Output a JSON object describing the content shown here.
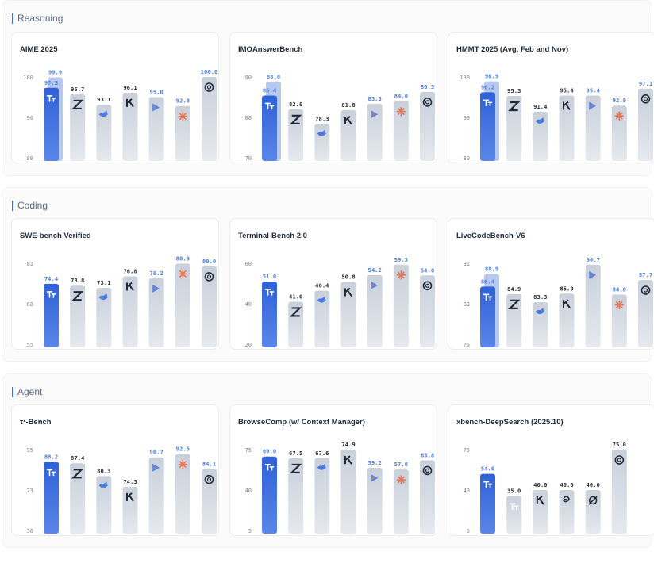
{
  "sections": [
    {
      "title": "Reasoning",
      "charts": [
        {
          "title": "AIME 2025",
          "chart_data": {
            "type": "bar",
            "yticks": [
              "100",
              "90",
              "80"
            ],
            "ylim": [
              80,
              100
            ],
            "bars": [
              {
                "model": "hyperstar",
                "value": 97.3,
                "label": "97.3",
                "highlight": true,
                "ghost": 99.9,
                "ghost_label": "99.9"
              },
              {
                "model": "z",
                "value": 95.7,
                "label": "95.7"
              },
              {
                "model": "whale",
                "value": 93.1,
                "label": "93.1"
              },
              {
                "model": "k",
                "value": 96.1,
                "label": "96.1"
              },
              {
                "model": "gem",
                "value": 95.0,
                "label": "95.0",
                "accent": true
              },
              {
                "model": "claude",
                "value": 92.8,
                "label": "92.8",
                "accent": true
              },
              {
                "model": "openai",
                "value": 100.0,
                "label": "100.0",
                "accent": true
              }
            ]
          }
        },
        {
          "title": "IMOAnswerBench",
          "chart_data": {
            "type": "bar",
            "yticks": [
              "90",
              "80",
              "70"
            ],
            "ylim": [
              70,
              90
            ],
            "bars": [
              {
                "model": "hyperstar",
                "value": 85.4,
                "label": "85.4",
                "highlight": true,
                "ghost": 88.8,
                "ghost_label": "88.8"
              },
              {
                "model": "z",
                "value": 82.0,
                "label": "82.0"
              },
              {
                "model": "whale",
                "value": 78.3,
                "label": "78.3"
              },
              {
                "model": "k",
                "value": 81.8,
                "label": "81.8"
              },
              {
                "model": "gem",
                "value": 83.3,
                "label": "83.3",
                "accent": true
              },
              {
                "model": "claude",
                "value": 84.0,
                "label": "84.0",
                "accent": true
              },
              {
                "model": "openai",
                "value": 86.3,
                "label": "86.3",
                "accent": true
              }
            ]
          }
        },
        {
          "title": "HMMT 2025 (Avg. Feb and Nov)",
          "chart_data": {
            "type": "bar",
            "yticks": [
              "100",
              "90",
              "80"
            ],
            "ylim": [
              80,
              100
            ],
            "bars": [
              {
                "model": "hyperstar",
                "value": 96.2,
                "label": "96.2",
                "highlight": true,
                "ghost": 98.9,
                "ghost_label": "98.9"
              },
              {
                "model": "z",
                "value": 95.3,
                "label": "95.3"
              },
              {
                "model": "whale",
                "value": 91.4,
                "label": "91.4"
              },
              {
                "model": "k",
                "value": 95.4,
                "label": "95.4"
              },
              {
                "model": "gem",
                "value": 95.4,
                "label": "95.4",
                "accent": true
              },
              {
                "model": "claude",
                "value": 92.9,
                "label": "92.9",
                "accent": true
              },
              {
                "model": "openai",
                "value": 97.1,
                "label": "97.1",
                "accent": true
              }
            ]
          }
        }
      ]
    },
    {
      "title": "Coding",
      "charts": [
        {
          "title": "SWE-bench Verified",
          "chart_data": {
            "type": "bar",
            "yticks": [
              "81",
              "68",
              "55"
            ],
            "ylim": [
              55,
              81
            ],
            "bars": [
              {
                "model": "hyperstar",
                "value": 74.4,
                "label": "74.4",
                "highlight": true
              },
              {
                "model": "z",
                "value": 73.8,
                "label": "73.8"
              },
              {
                "model": "whale",
                "value": 73.1,
                "label": "73.1"
              },
              {
                "model": "k",
                "value": 76.8,
                "label": "76.8"
              },
              {
                "model": "gem",
                "value": 76.2,
                "label": "76.2",
                "accent": true
              },
              {
                "model": "claude",
                "value": 80.9,
                "label": "80.9",
                "accent": true
              },
              {
                "model": "openai",
                "value": 80.0,
                "label": "80.0",
                "accent": true
              }
            ]
          }
        },
        {
          "title": "Terminal-Bench 2.0",
          "chart_data": {
            "type": "bar",
            "yticks": [
              "60",
              "40",
              "20"
            ],
            "ylim": [
              20,
              60
            ],
            "bars": [
              {
                "model": "hyperstar",
                "value": 51.0,
                "label": "51.0",
                "highlight": true
              },
              {
                "model": "z",
                "value": 41.0,
                "label": "41.0"
              },
              {
                "model": "whale",
                "value": 46.4,
                "label": "46.4"
              },
              {
                "model": "k",
                "value": 50.8,
                "label": "50.8"
              },
              {
                "model": "gem",
                "value": 54.2,
                "label": "54.2",
                "accent": true
              },
              {
                "model": "claude",
                "value": 59.3,
                "label": "59.3",
                "accent": true
              },
              {
                "model": "openai",
                "value": 54.0,
                "label": "54.0",
                "accent": true
              }
            ]
          }
        },
        {
          "title": "LiveCodeBench-V6",
          "chart_data": {
            "type": "bar",
            "yticks": [
              "91",
              "83",
              "75"
            ],
            "ylim": [
              75,
              91
            ],
            "bars": [
              {
                "model": "hyperstar",
                "value": 86.4,
                "label": "86.4",
                "highlight": true,
                "ghost": 88.9,
                "ghost_label": "88.9"
              },
              {
                "model": "z",
                "value": 84.9,
                "label": "84.9"
              },
              {
                "model": "whale",
                "value": 83.3,
                "label": "83.3"
              },
              {
                "model": "k",
                "value": 85.0,
                "label": "85.0"
              },
              {
                "model": "gem",
                "value": 90.7,
                "label": "90.7",
                "accent": true
              },
              {
                "model": "claude",
                "value": 84.8,
                "label": "84.8",
                "accent": true
              },
              {
                "model": "openai",
                "value": 87.7,
                "label": "87.7",
                "accent": true
              }
            ]
          }
        }
      ]
    },
    {
      "title": "Agent",
      "charts": [
        {
          "title": "τ²-Bench",
          "chart_data": {
            "type": "bar",
            "yticks": [
              "95",
              "73",
              "50"
            ],
            "ylim": [
              50,
              95
            ],
            "bars": [
              {
                "model": "hyperstar",
                "value": 88.2,
                "label": "88.2",
                "highlight": true
              },
              {
                "model": "z",
                "value": 87.4,
                "label": "87.4"
              },
              {
                "model": "whale",
                "value": 80.3,
                "label": "80.3"
              },
              {
                "model": "k",
                "value": 74.3,
                "label": "74.3"
              },
              {
                "model": "gem",
                "value": 90.7,
                "label": "90.7",
                "accent": true
              },
              {
                "model": "claude",
                "value": 92.5,
                "label": "92.5",
                "accent": true
              },
              {
                "model": "openai",
                "value": 84.1,
                "label": "84.1",
                "accent": true
              }
            ]
          }
        },
        {
          "title": "BrowseComp (w/ Context Manager)",
          "chart_data": {
            "type": "bar",
            "yticks": [
              "75",
              "40",
              "5"
            ],
            "ylim": [
              5,
              75
            ],
            "bars": [
              {
                "model": "hyperstar",
                "value": 69.0,
                "label": "69.0",
                "highlight": true
              },
              {
                "model": "z",
                "value": 67.5,
                "label": "67.5"
              },
              {
                "model": "whale",
                "value": 67.6,
                "label": "67.6"
              },
              {
                "model": "k",
                "value": 74.9,
                "label": "74.9"
              },
              {
                "model": "gem",
                "value": 59.2,
                "label": "59.2",
                "accent": true
              },
              {
                "model": "claude",
                "value": 57.8,
                "label": "57.8",
                "accent": true
              },
              {
                "model": "openai",
                "value": 65.8,
                "label": "65.8",
                "accent": true
              }
            ]
          }
        },
        {
          "title": "xbench-DeepSearch (2025.10)",
          "chart_data": {
            "type": "bar",
            "yticks": [
              "75",
              "40",
              "5"
            ],
            "ylim": [
              5,
              75
            ],
            "bars": [
              {
                "model": "hyperstar",
                "value": 54.0,
                "label": "54.0",
                "highlight": true
              },
              {
                "model": "hyperstar-grey",
                "value": 35.0,
                "label": "35.0"
              },
              {
                "model": "k",
                "value": 40.0,
                "label": "40.0"
              },
              {
                "model": "knot",
                "value": 40.0,
                "label": "40.0"
              },
              {
                "model": "slash",
                "value": 40.0,
                "label": "40.0"
              },
              {
                "model": "openai",
                "value": 75.0,
                "label": "75.0"
              }
            ]
          }
        }
      ]
    }
  ],
  "colors": {
    "highlight": "#2f62d8",
    "highlight_light": "#5a86ea",
    "ghost": "#9fb6ea",
    "bar": "#d5dbe3",
    "label": "#2b2f36",
    "accent_label": "#4d7de0",
    "tick": "#7b8494"
  }
}
